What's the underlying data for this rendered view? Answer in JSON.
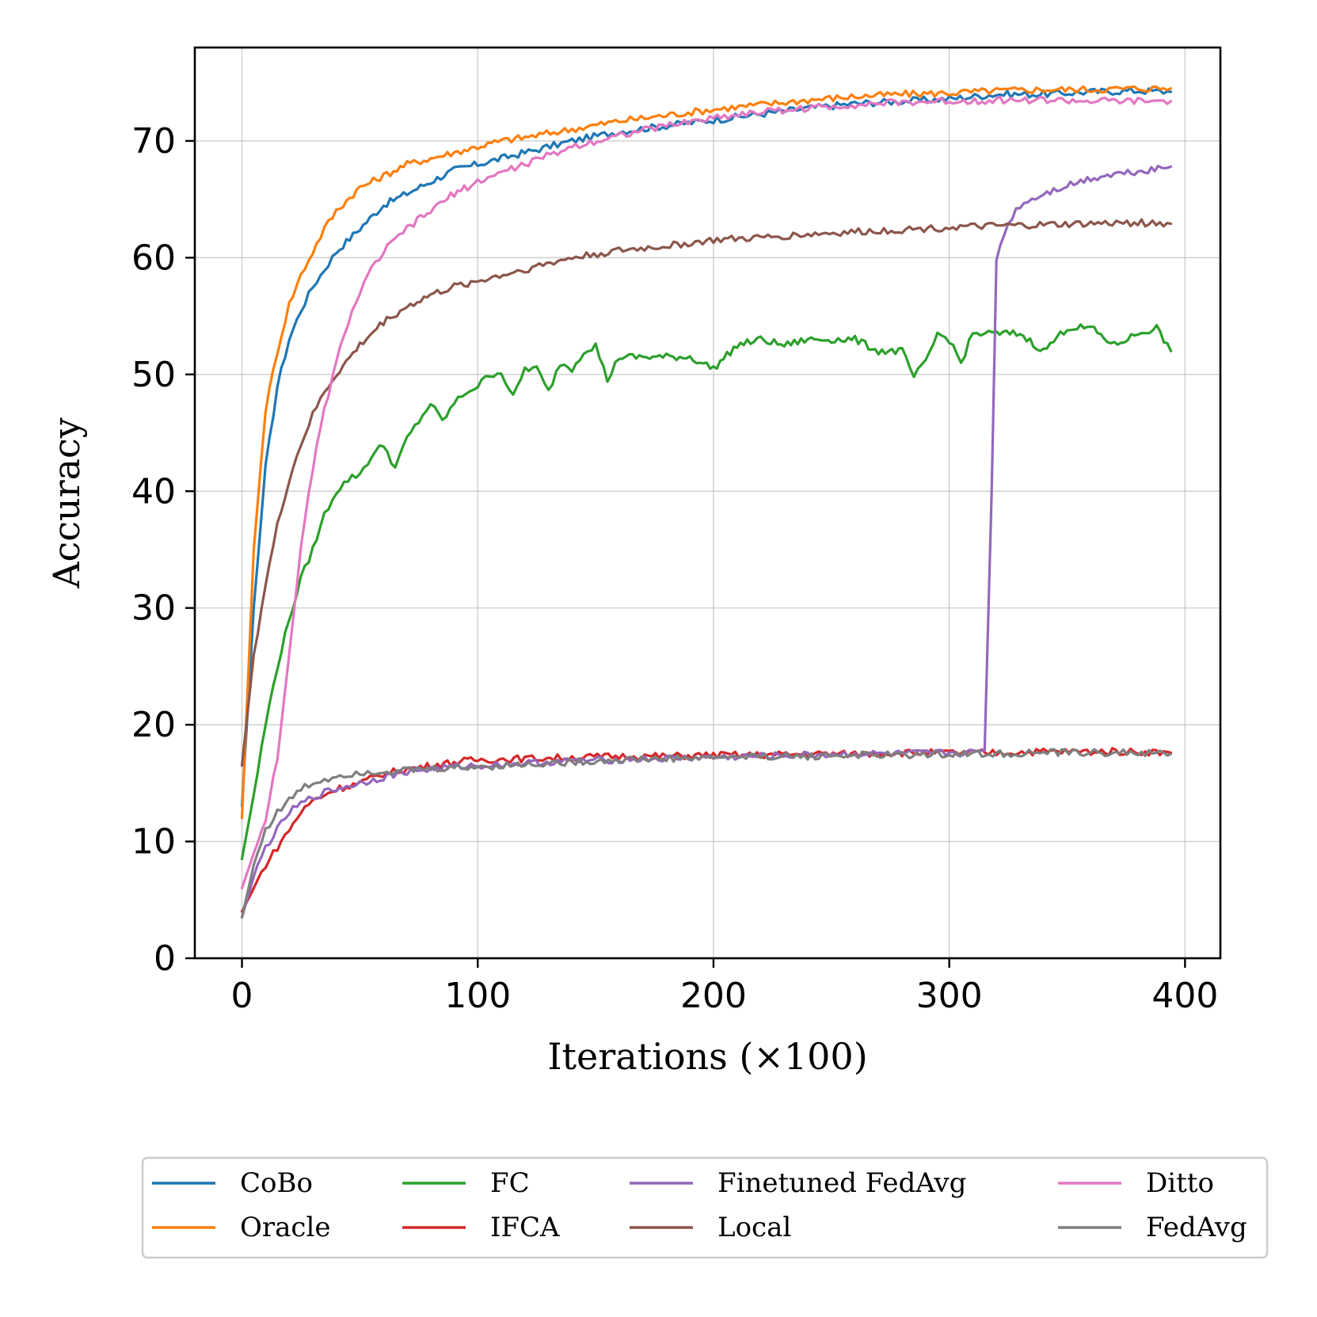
{
  "chart_data": {
    "type": "line",
    "title": "",
    "xlabel": "Iterations (×100)",
    "ylabel": "Accuracy",
    "xlim": [
      -20,
      415
    ],
    "ylim": [
      0,
      78
    ],
    "xticks": [
      0,
      100,
      200,
      300,
      400
    ],
    "yticks": [
      0,
      10,
      20,
      30,
      40,
      50,
      60,
      70
    ],
    "grid": true,
    "legend_position": "bottom, below axes, 4 columns",
    "series": [
      {
        "name": "CoBo",
        "color": "#1f77b4",
        "x": [
          0,
          5,
          10,
          15,
          20,
          25,
          30,
          35,
          40,
          50,
          60,
          70,
          80,
          90,
          100,
          110,
          120,
          140,
          160,
          180,
          200,
          220,
          240,
          260,
          280,
          300,
          320,
          340,
          360,
          380,
          394
        ],
        "y": [
          13,
          30,
          42,
          49,
          53,
          55.5,
          57.5,
          59,
          60.5,
          62.5,
          64.5,
          65.5,
          66.5,
          67.5,
          68,
          68.5,
          69,
          70,
          70.8,
          71.3,
          71.8,
          72.3,
          72.8,
          73.2,
          73.4,
          73.6,
          74,
          74,
          74.2,
          74.3,
          74.2
        ]
      },
      {
        "name": "Oracle",
        "color": "#ff7f0e",
        "x": [
          0,
          5,
          10,
          15,
          20,
          25,
          30,
          35,
          40,
          50,
          60,
          70,
          80,
          90,
          100,
          110,
          120,
          140,
          160,
          180,
          200,
          220,
          240,
          260,
          280,
          300,
          320,
          340,
          360,
          380,
          394
        ],
        "y": [
          12,
          35,
          47,
          52,
          56,
          58.5,
          60.5,
          62.5,
          64,
          66,
          67,
          68,
          68.5,
          69,
          69.5,
          70,
          70.3,
          71,
          71.7,
          72.2,
          72.7,
          73.1,
          73.5,
          73.8,
          74,
          74.1,
          74.3,
          74.4,
          74.4,
          74.5,
          74.5
        ]
      },
      {
        "name": "FC",
        "color": "#2ca02c",
        "x": [
          0,
          5,
          10,
          15,
          20,
          25,
          30,
          35,
          40,
          45,
          50,
          55,
          60,
          65,
          70,
          75,
          80,
          85,
          90,
          95,
          100,
          105,
          110,
          115,
          120,
          125,
          130,
          135,
          140,
          145,
          150,
          155,
          160,
          170,
          180,
          190,
          200,
          210,
          220,
          230,
          240,
          250,
          260,
          270,
          280,
          285,
          290,
          295,
          300,
          305,
          310,
          315,
          320,
          330,
          340,
          350,
          360,
          370,
          380,
          388,
          394
        ],
        "y": [
          8.5,
          14,
          20,
          25,
          29,
          32.5,
          35,
          38,
          40,
          41,
          41.5,
          43,
          44,
          42,
          44.5,
          46,
          47.5,
          46,
          47.5,
          48.5,
          49,
          50,
          50.2,
          48,
          50.5,
          50.5,
          48.5,
          51,
          50.5,
          52,
          52.5,
          49.5,
          51.5,
          51.5,
          51.5,
          51.5,
          50.5,
          52.5,
          53,
          52.5,
          53,
          53,
          53,
          52,
          52,
          49.8,
          51,
          53.5,
          53,
          51,
          53.5,
          53.5,
          53.5,
          53.5,
          52,
          54,
          54,
          52.5,
          53.5,
          54,
          52
        ]
      },
      {
        "name": "IFCA",
        "color": "#d62728",
        "x": [
          0,
          5,
          10,
          15,
          20,
          25,
          30,
          35,
          40,
          50,
          60,
          70,
          80,
          90,
          100,
          120,
          140,
          160,
          180,
          200,
          220,
          240,
          260,
          280,
          300,
          320,
          340,
          360,
          380,
          394
        ],
        "y": [
          4,
          6,
          8,
          9.5,
          11,
          12.5,
          13.5,
          14,
          14.5,
          15,
          15.8,
          16.2,
          16.5,
          16.8,
          17,
          17.1,
          17.2,
          17.3,
          17.3,
          17.4,
          17.4,
          17.5,
          17.5,
          17.6,
          17.6,
          17.6,
          17.7,
          17.7,
          17.7,
          17.6
        ]
      },
      {
        "name": "Finetuned FedAvg",
        "color": "#9467bd",
        "x": [
          0,
          5,
          10,
          15,
          20,
          25,
          30,
          35,
          40,
          50,
          60,
          70,
          80,
          90,
          100,
          120,
          140,
          160,
          180,
          200,
          220,
          240,
          260,
          280,
          300,
          310,
          315,
          318,
          320,
          325,
          330,
          335,
          340,
          350,
          360,
          370,
          380,
          390,
          394
        ],
        "y": [
          3.5,
          7,
          9.5,
          11,
          12.5,
          13.2,
          13.8,
          14.2,
          14.5,
          15,
          15.5,
          16,
          16.2,
          16.4,
          16.5,
          16.7,
          16.9,
          17,
          17.1,
          17.2,
          17.3,
          17.4,
          17.5,
          17.5,
          17.6,
          17.6,
          17.8,
          40,
          60,
          63,
          64.5,
          65,
          65.5,
          66.2,
          66.8,
          67.2,
          67.4,
          67.7,
          67.8
        ]
      },
      {
        "name": "Local",
        "color": "#8c564b",
        "x": [
          0,
          5,
          10,
          15,
          20,
          25,
          30,
          35,
          40,
          50,
          60,
          70,
          80,
          90,
          100,
          120,
          140,
          160,
          180,
          200,
          220,
          240,
          260,
          280,
          300,
          320,
          340,
          360,
          380,
          394
        ],
        "y": [
          16.5,
          26,
          32,
          37,
          41,
          44,
          46.5,
          48.5,
          50,
          52.5,
          54.5,
          55.8,
          56.8,
          57.5,
          58,
          59,
          60,
          60.6,
          61,
          61.5,
          61.7,
          62,
          62.2,
          62.4,
          62.6,
          62.7,
          62.8,
          62.9,
          63,
          62.9
        ]
      },
      {
        "name": "Ditto",
        "color": "#e377c2",
        "x": [
          0,
          5,
          10,
          15,
          20,
          25,
          30,
          35,
          40,
          45,
          50,
          55,
          60,
          65,
          70,
          80,
          90,
          100,
          110,
          120,
          140,
          160,
          180,
          200,
          220,
          240,
          260,
          280,
          300,
          320,
          340,
          360,
          380,
          394
        ],
        "y": [
          6,
          9,
          12,
          17,
          26,
          35,
          42,
          47,
          51,
          54.5,
          57,
          59,
          60.5,
          61.5,
          62.5,
          64,
          65.5,
          66.5,
          67.3,
          68,
          69.5,
          70.5,
          71.3,
          72,
          72.5,
          72.8,
          73.1,
          73.3,
          73.4,
          73.5,
          73.5,
          73.4,
          73.4,
          73.4
        ]
      },
      {
        "name": "FedAvg",
        "color": "#7f7f7f",
        "x": [
          0,
          5,
          10,
          15,
          20,
          25,
          30,
          35,
          40,
          45,
          50,
          55,
          60,
          70,
          80,
          90,
          100,
          120,
          140,
          160,
          180,
          200,
          220,
          240,
          260,
          280,
          300,
          320,
          340,
          360,
          380,
          394
        ],
        "y": [
          3.5,
          8,
          11,
          12.5,
          13.5,
          14.5,
          15,
          15.3,
          15.6,
          15.8,
          15.9,
          16,
          16,
          16.1,
          16.2,
          16.3,
          16.4,
          16.6,
          16.8,
          17,
          17.1,
          17.2,
          17.3,
          17.3,
          17.4,
          17.4,
          17.5,
          17.5,
          17.6,
          17.6,
          17.6,
          17.5
        ]
      }
    ],
    "legend": {
      "columns": [
        [
          "CoBo",
          "Oracle"
        ],
        [
          "FC",
          "IFCA"
        ],
        [
          "Finetuned FedAvg",
          "Local"
        ],
        [
          "Ditto",
          "FedAvg"
        ]
      ]
    }
  }
}
